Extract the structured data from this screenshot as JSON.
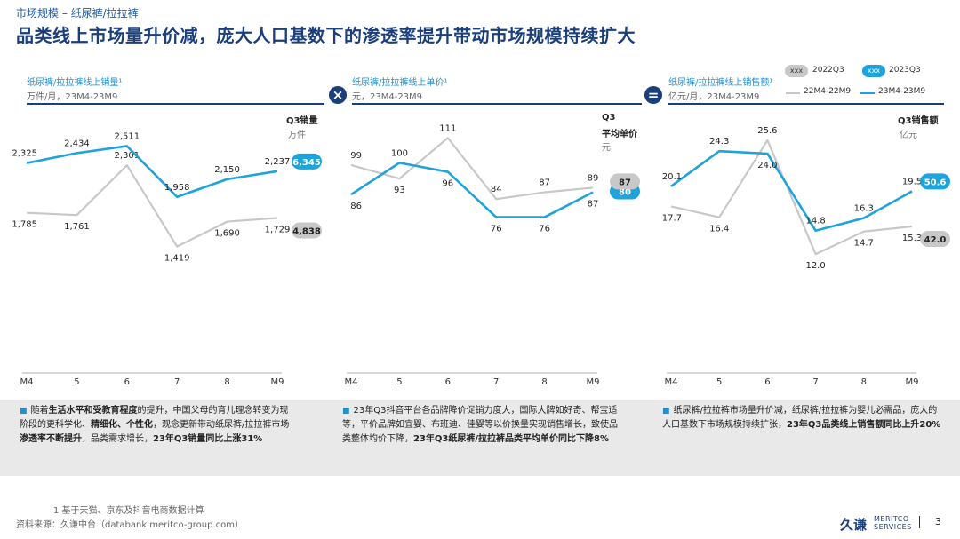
{
  "header": {
    "breadcrumb": "市场规模 – 纸尿裤/拉拉裤",
    "title": "品类线上市场量升价减，庞大人口基数下的渗透率提升带动市场规模持续扩大"
  },
  "panels": [
    {
      "heading": "纸尿裤/拉拉裤线上销量¹",
      "sub": "万件/月，23M4-23M9",
      "q3_label": "Q3销量",
      "q3_unit": "万件"
    },
    {
      "heading": "纸尿裤/拉拉裤线上单价¹",
      "sub": "元，23M4-23M9",
      "q3_label_l1": "Q3",
      "q3_label_l2": "平均单价",
      "q3_unit": "元"
    },
    {
      "heading": "纸尿裤/拉拉裤线上销售额¹",
      "sub": "亿元/月，23M4-23M9",
      "q3_label": "Q3销售额",
      "q3_unit": "亿元"
    }
  ],
  "operators": {
    "times": "×",
    "equals": "="
  },
  "legend": {
    "pill_text": "xxx",
    "item_2022q3": "2022Q3",
    "item_2023q3": "2023Q3",
    "line_22": "22M4-22M9",
    "line_23": "23M4-23M9"
  },
  "colors": {
    "series_22": "#c8c8c8",
    "series_23": "#1ea3db",
    "pill_22": "#c8c8c8",
    "pill_23": "#1ea3db",
    "navy": "#1b3f7a"
  },
  "chart_data": [
    {
      "type": "line",
      "title": "纸尿裤/拉拉裤线上销量",
      "ylabel": "万件/月",
      "categories": [
        "M4",
        "5",
        "6",
        "7",
        "8",
        "M9"
      ],
      "series": [
        {
          "name": "22M4-22M9",
          "values": [
            1785,
            1761,
            2301,
            1419,
            1690,
            1729
          ]
        },
        {
          "name": "23M4-23M9",
          "values": [
            2325,
            2434,
            2511,
            1958,
            2150,
            2237
          ]
        }
      ],
      "q3": {
        "2022Q3": "4,838",
        "2023Q3": "6,345"
      },
      "ylim": [
        1300,
        2650
      ]
    },
    {
      "type": "line",
      "title": "纸尿裤/拉拉裤线上单价",
      "ylabel": "元",
      "categories": [
        "M4",
        "5",
        "6",
        "7",
        "8",
        "M9"
      ],
      "series": [
        {
          "name": "22M4-22M9",
          "values": [
            99,
            93,
            111,
            84,
            87,
            89
          ]
        },
        {
          "name": "23M4-23M9",
          "values": [
            86,
            100,
            96,
            76,
            76,
            87
          ]
        }
      ],
      "q3": {
        "2022Q3": "87",
        "2023Q3": "80"
      },
      "ylim": [
        68,
        117
      ]
    },
    {
      "type": "line",
      "title": "纸尿裤/拉拉裤线上销售额",
      "ylabel": "亿元/月",
      "categories": [
        "M4",
        "5",
        "6",
        "7",
        "8",
        "M9"
      ],
      "series": [
        {
          "name": "22M4-22M9",
          "values": [
            17.7,
            16.4,
            25.6,
            12.0,
            14.7,
            15.3
          ]
        },
        {
          "name": "23M4-23M9",
          "values": [
            20.1,
            24.3,
            24.0,
            14.8,
            16.3,
            19.5
          ]
        }
      ],
      "q3": {
        "2022Q3": "42.0",
        "2023Q3": "50.6"
      },
      "ylim": [
        10,
        27.5
      ]
    }
  ],
  "bullets": [
    {
      "parts": [
        {
          "t": "随着",
          "b": false
        },
        {
          "t": "生活水平和受教育程度",
          "b": true
        },
        {
          "t": "的提升，中国父母的育儿理念转变为现阶段的更科学化、",
          "b": false
        },
        {
          "t": "精细化、个性化",
          "b": true
        },
        {
          "t": "，观念更新带动纸尿裤/拉拉裤市场",
          "b": false
        },
        {
          "t": "渗透率不断提升",
          "b": true
        },
        {
          "t": "，品类需求增长，",
          "b": false
        },
        {
          "t": "23年Q3销量同比上涨31%",
          "b": true
        }
      ]
    },
    {
      "parts": [
        {
          "t": "23年Q3抖音平台各品牌降价促销力度大，国际大牌如好奇、帮宝适等，平价品牌如宜婴、布班迪、佳婴等以价换量实现销售增长，致使品类整体均价下降，",
          "b": false
        },
        {
          "t": "23年Q3纸尿裤/拉拉裤品类平均单价同比下降8%",
          "b": true
        }
      ]
    },
    {
      "parts": [
        {
          "t": "纸尿裤/拉拉裤市场量升价减，纸尿裤/拉拉裤为婴儿必需品，庞大的人口基数下市场规模持续扩张，",
          "b": false
        },
        {
          "t": "23年Q3品类线上销售额同比上升20%",
          "b": true
        }
      ]
    }
  ],
  "footer": {
    "note": "1  基于天猫、京东及抖音电商数据计算",
    "source": "资料来源：久谦中台（databank.meritco-group.com）",
    "logo_cn": "久谦",
    "logo_en_1": "MERITCO",
    "logo_en_2": "SERVICES",
    "page": "3"
  }
}
